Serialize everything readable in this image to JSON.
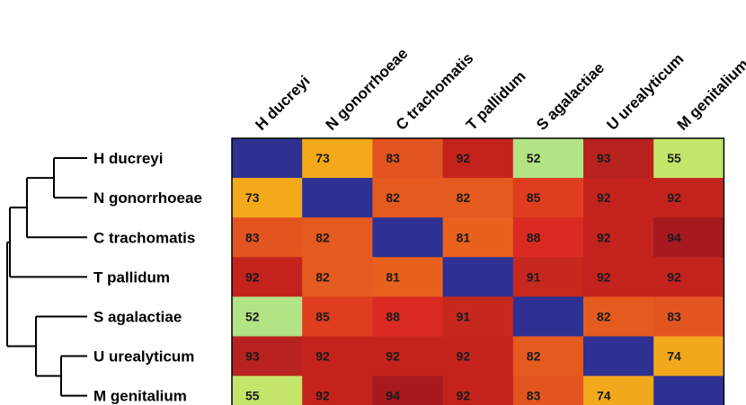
{
  "chart_data": {
    "type": "heatmap",
    "labels": [
      "H ducreyi",
      "N gonorrhoeae",
      "C trachomatis",
      "T pallidum",
      "S agalactiae",
      "U urealyticum",
      "M genitalium"
    ],
    "values": [
      [
        null,
        73,
        83,
        92,
        52,
        93,
        55
      ],
      [
        73,
        null,
        82,
        82,
        85,
        92,
        92
      ],
      [
        83,
        82,
        null,
        81,
        88,
        92,
        94
      ],
      [
        92,
        82,
        81,
        null,
        91,
        92,
        92
      ],
      [
        52,
        85,
        88,
        91,
        null,
        82,
        83
      ],
      [
        93,
        92,
        92,
        92,
        82,
        null,
        74
      ],
      [
        55,
        92,
        94,
        92,
        83,
        74,
        null
      ]
    ],
    "diagonal_color": "#2e3192",
    "value_colors": {
      "52": "#b2e384",
      "55": "#c4e56a",
      "73": "#f3a91a",
      "74": "#f2a81c",
      "81": "#e8621e",
      "82": "#e55a1e",
      "83": "#e35520",
      "85": "#df3d20",
      "88": "#da2b23",
      "91": "#c6281e",
      "92": "#c4231d",
      "93": "#b8231f",
      "94": "#a61a1f"
    },
    "dendrogram": "((H ducreyi,N gonorrhoeae),C trachomatis),T pallidum),(S agalactiae,(U urealyticum,M genitalium))"
  }
}
